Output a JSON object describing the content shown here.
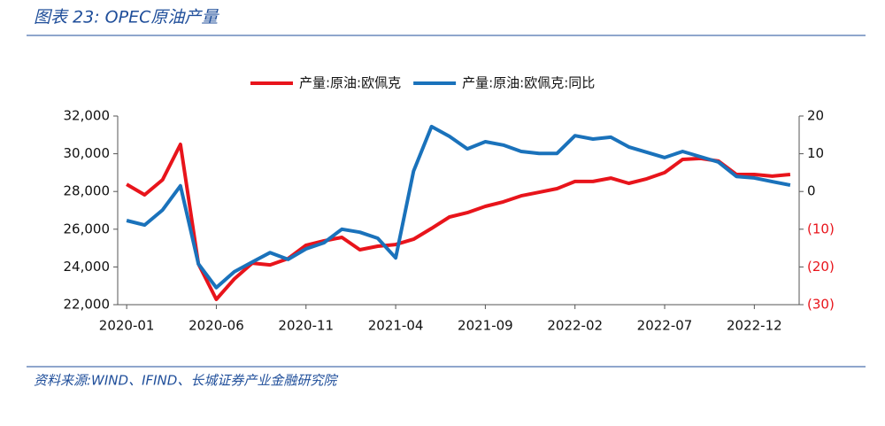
{
  "chart_data": {
    "type": "line",
    "title": "图表 23:  OPEC原油产量",
    "source": "资料来源:WIND、IFIND、长城证券产业金融研究院",
    "categories": [
      "2020-01",
      null,
      null,
      null,
      null,
      "2020-06",
      null,
      null,
      null,
      null,
      "2020-11",
      null,
      null,
      null,
      null,
      "2021-04",
      null,
      null,
      null,
      null,
      "2021-09",
      null,
      null,
      null,
      null,
      "2022-02",
      null,
      null,
      null,
      null,
      "2022-07",
      null,
      null,
      null,
      null,
      "2022-12",
      null,
      null
    ],
    "series": [
      {
        "name": "产量:原油:欧佩克",
        "color": "#e8141b",
        "axis": "y",
        "values": [
          28380,
          27820,
          28620,
          30500,
          24160,
          22280,
          23360,
          24200,
          24110,
          24440,
          25150,
          25380,
          25570,
          24910,
          25100,
          25190,
          25470,
          26040,
          26650,
          26880,
          27210,
          27450,
          27770,
          27960,
          28150,
          28530,
          28530,
          28710,
          28430,
          28670,
          29000,
          29700,
          29750,
          29610,
          28900,
          28900,
          28810,
          28900
        ]
      },
      {
        "name": "产量:原油:欧佩克:同比",
        "color": "#1a72bb",
        "axis": "y2",
        "values": [
          -7.7,
          -8.9,
          -4.9,
          1.5,
          -19.2,
          -25.5,
          -21.3,
          -18.7,
          -16.2,
          -18.0,
          -15.2,
          -13.6,
          -10.0,
          -10.8,
          -12.4,
          -17.6,
          5.4,
          17.2,
          14.6,
          11.3,
          13.2,
          12.3,
          10.6,
          10.1,
          10.1,
          14.8,
          13.9,
          14.4,
          11.8,
          10.4,
          9.0,
          10.6,
          9.2,
          7.8,
          4.0,
          3.6,
          2.6,
          1.7
        ]
      }
    ],
    "ylim": [
      22000,
      32000
    ],
    "yticks": [
      {
        "value": 22000,
        "label": "22,000"
      },
      {
        "value": 24000,
        "label": "24,000"
      },
      {
        "value": 26000,
        "label": "26,000"
      },
      {
        "value": 28000,
        "label": "28,000"
      },
      {
        "value": 30000,
        "label": "30,000"
      },
      {
        "value": 32000,
        "label": "32,000"
      }
    ],
    "y2lim": [
      -30,
      20
    ],
    "y2ticks": [
      {
        "value": -30,
        "label": "(30)"
      },
      {
        "value": -20,
        "label": "(20)"
      },
      {
        "value": -10,
        "label": "(10)"
      },
      0,
      10,
      20
    ],
    "legend": "top"
  }
}
